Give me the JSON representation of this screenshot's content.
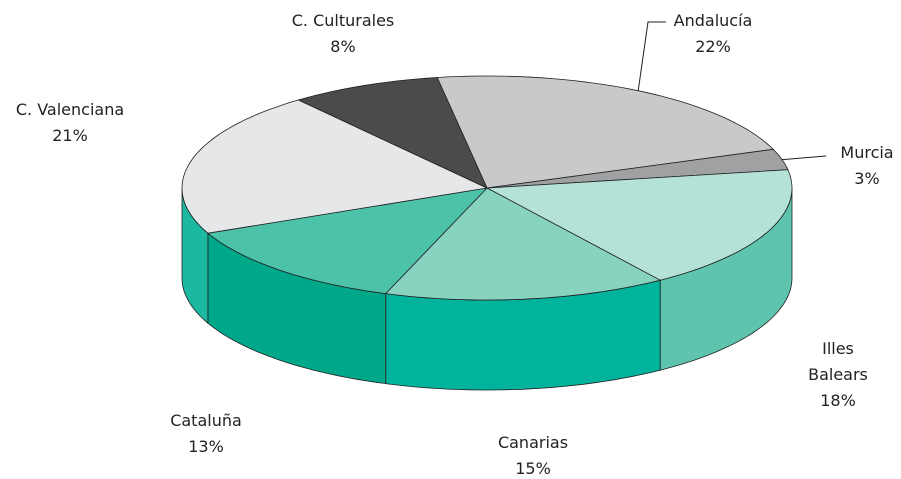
{
  "chart_data": {
    "type": "pie",
    "categories": [
      "Andalucía",
      "Murcia",
      "Illes Balears",
      "Canarias",
      "Cataluña",
      "C. Valenciana",
      "C. Culturales"
    ],
    "values": [
      22,
      3,
      18,
      15,
      13,
      21,
      8
    ],
    "value_labels": [
      "22%",
      "3%",
      "18%",
      "15%",
      "13%",
      "21%",
      "8%"
    ],
    "colors": [
      "#c8c9cb",
      "#a0a1a3",
      "#b5e2d6",
      "#88d3c0",
      "#4cc2a9",
      "#e6e7e8",
      "#4a4b4d"
    ],
    "side_colors": [
      "#9fa0a2",
      "#808183",
      "#5ec4ad",
      "#00b39c",
      "#00a88a",
      "#1ab9a0",
      "#333436"
    ],
    "start_angle": -9.4
  }
}
